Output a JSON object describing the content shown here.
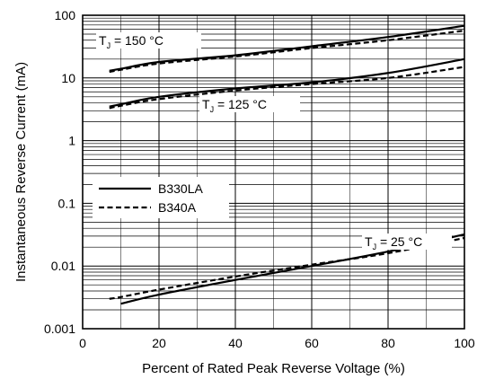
{
  "chart_data": {
    "type": "line",
    "xlabel": "Percent of Rated Peak Reverse Voltage (%)",
    "ylabel": "Instantaneous Reverse Current (mA)",
    "xlim": [
      0,
      100
    ],
    "ylim": [
      0.001,
      100
    ],
    "yscale": "log",
    "grid": true,
    "x_ticks": [
      0,
      20,
      40,
      60,
      80,
      100
    ],
    "x_tick_labels": [
      "0",
      "20",
      "40",
      "60",
      "80",
      "100"
    ],
    "y_ticks": [
      0.001,
      0.01,
      0.1,
      1,
      10,
      100
    ],
    "y_tick_labels": [
      "0.001",
      "0.01",
      "0.1",
      "1",
      "10",
      "100"
    ],
    "legend": {
      "placement": "middle-left",
      "entries": [
        {
          "label": "B330LA",
          "style": "solid"
        },
        {
          "label": "B340A",
          "style": "dashed"
        }
      ]
    },
    "annotations": [
      {
        "label": "150 °C",
        "group": "150"
      },
      {
        "label": "125 °C",
        "group": "125"
      },
      {
        "label": "25 °C",
        "group": "25"
      }
    ],
    "series": [
      {
        "name": "B330LA",
        "group": "150",
        "style": "solid",
        "x": [
          7,
          10,
          20,
          40,
          60,
          80,
          100
        ],
        "y": [
          13,
          14,
          18,
          23,
          32,
          45,
          68
        ]
      },
      {
        "name": "B340A",
        "group": "150",
        "style": "dashed",
        "x": [
          7,
          10,
          20,
          40,
          60,
          80,
          100
        ],
        "y": [
          12.5,
          13.5,
          17,
          22,
          30,
          40,
          57
        ]
      },
      {
        "name": "B330LA",
        "group": "125",
        "style": "solid",
        "x": [
          7,
          10,
          20,
          40,
          60,
          80,
          100
        ],
        "y": [
          3.5,
          3.8,
          5,
          6.8,
          8.5,
          12,
          20
        ]
      },
      {
        "name": "B340A",
        "group": "125",
        "style": "dashed",
        "x": [
          7,
          10,
          20,
          40,
          60,
          80,
          100
        ],
        "y": [
          3.3,
          3.6,
          4.6,
          6.3,
          8,
          10,
          15
        ]
      },
      {
        "name": "B330LA",
        "group": "25",
        "style": "solid",
        "x": [
          10,
          20,
          40,
          60,
          80,
          100
        ],
        "y": [
          0.0025,
          0.0035,
          0.006,
          0.01,
          0.017,
          0.032
        ]
      },
      {
        "name": "B340A",
        "group": "25",
        "style": "dashed",
        "x": [
          7,
          10,
          20,
          40,
          60,
          80,
          100
        ],
        "y": [
          0.003,
          0.0032,
          0.0042,
          0.0068,
          0.0105,
          0.016,
          0.028
        ]
      }
    ]
  }
}
